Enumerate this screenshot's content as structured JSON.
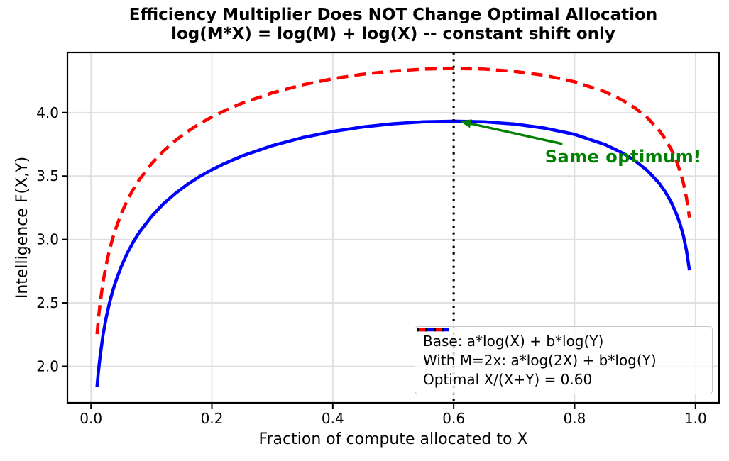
{
  "title": {
    "line1": "Efficiency Multiplier Does NOT Change Optimal Allocation",
    "line2": "log(M*X) = log(M) + log(X) -- constant shift only"
  },
  "chart_data": {
    "type": "line",
    "title": "Efficiency Multiplier Does NOT Change Optimal Allocation\nlog(M*X) = log(M) + log(X) -- constant shift only",
    "xlabel": "Fraction of compute allocated to X",
    "ylabel": "Intelligence F(X,Y)",
    "xlim": [
      -0.039,
      1.039
    ],
    "ylim": [
      1.712,
      4.474
    ],
    "grid": true,
    "legend_position": "lower right",
    "x_ticks": [
      0.0,
      0.2,
      0.4,
      0.6,
      0.8,
      1.0
    ],
    "x_tick_labels": [
      "0.0",
      "0.2",
      "0.4",
      "0.6",
      "0.8",
      "1.0"
    ],
    "y_ticks": [
      2.0,
      2.5,
      3.0,
      3.5,
      4.0
    ],
    "y_tick_labels": [
      "2.0",
      "2.5",
      "3.0",
      "3.5",
      "4.0"
    ],
    "x": [
      0.01,
      0.012,
      0.015,
      0.02,
      0.025,
      0.03,
      0.035,
      0.04,
      0.05,
      0.06,
      0.07,
      0.08,
      0.1,
      0.12,
      0.14,
      0.16,
      0.18,
      0.2,
      0.22,
      0.25,
      0.3,
      0.35,
      0.4,
      0.45,
      0.5,
      0.55,
      0.6,
      0.65,
      0.7,
      0.75,
      0.8,
      0.85,
      0.88,
      0.9,
      0.92,
      0.94,
      0.95,
      0.96,
      0.97,
      0.975,
      0.98,
      0.985,
      0.99
    ],
    "series": [
      {
        "name": "Base: a*log(X) + b*log(Y)",
        "color": "#0000ff",
        "style": "solid",
        "values": [
          1.838,
          1.947,
          2.079,
          2.25,
          2.382,
          2.489,
          2.579,
          2.658,
          2.787,
          2.892,
          2.981,
          3.056,
          3.181,
          3.282,
          3.365,
          3.436,
          3.497,
          3.55,
          3.597,
          3.658,
          3.74,
          3.803,
          3.851,
          3.887,
          3.912,
          3.927,
          3.932,
          3.927,
          3.91,
          3.878,
          3.828,
          3.749,
          3.68,
          3.621,
          3.545,
          3.443,
          3.376,
          3.293,
          3.184,
          3.114,
          3.028,
          2.916,
          2.757
        ]
      },
      {
        "name": "With M=2x: a*log(2X) + b*log(Y)",
        "color": "#ff0000",
        "style": "dashed",
        "values": [
          2.254,
          2.363,
          2.495,
          2.666,
          2.798,
          2.905,
          2.995,
          3.073,
          3.203,
          3.308,
          3.396,
          3.472,
          3.597,
          3.698,
          3.781,
          3.852,
          3.913,
          3.966,
          4.013,
          4.074,
          4.156,
          4.219,
          4.267,
          4.303,
          4.328,
          4.343,
          4.348,
          4.343,
          4.325,
          4.294,
          4.243,
          4.165,
          4.096,
          4.037,
          3.961,
          3.859,
          3.792,
          3.709,
          3.6,
          3.53,
          3.444,
          3.332,
          3.173
        ]
      }
    ],
    "vline": {
      "x": 0.6,
      "label": "Optimal X/(X+Y) = 0.60",
      "color": "#000000",
      "style": "dotted"
    },
    "annotation": {
      "text": "Same optimum!",
      "color": "#008000",
      "xy": [
        0.61,
        3.932
      ],
      "arrow_tail": [
        0.78,
        3.753
      ],
      "text_anchor": [
        0.751,
        3.607
      ]
    }
  }
}
